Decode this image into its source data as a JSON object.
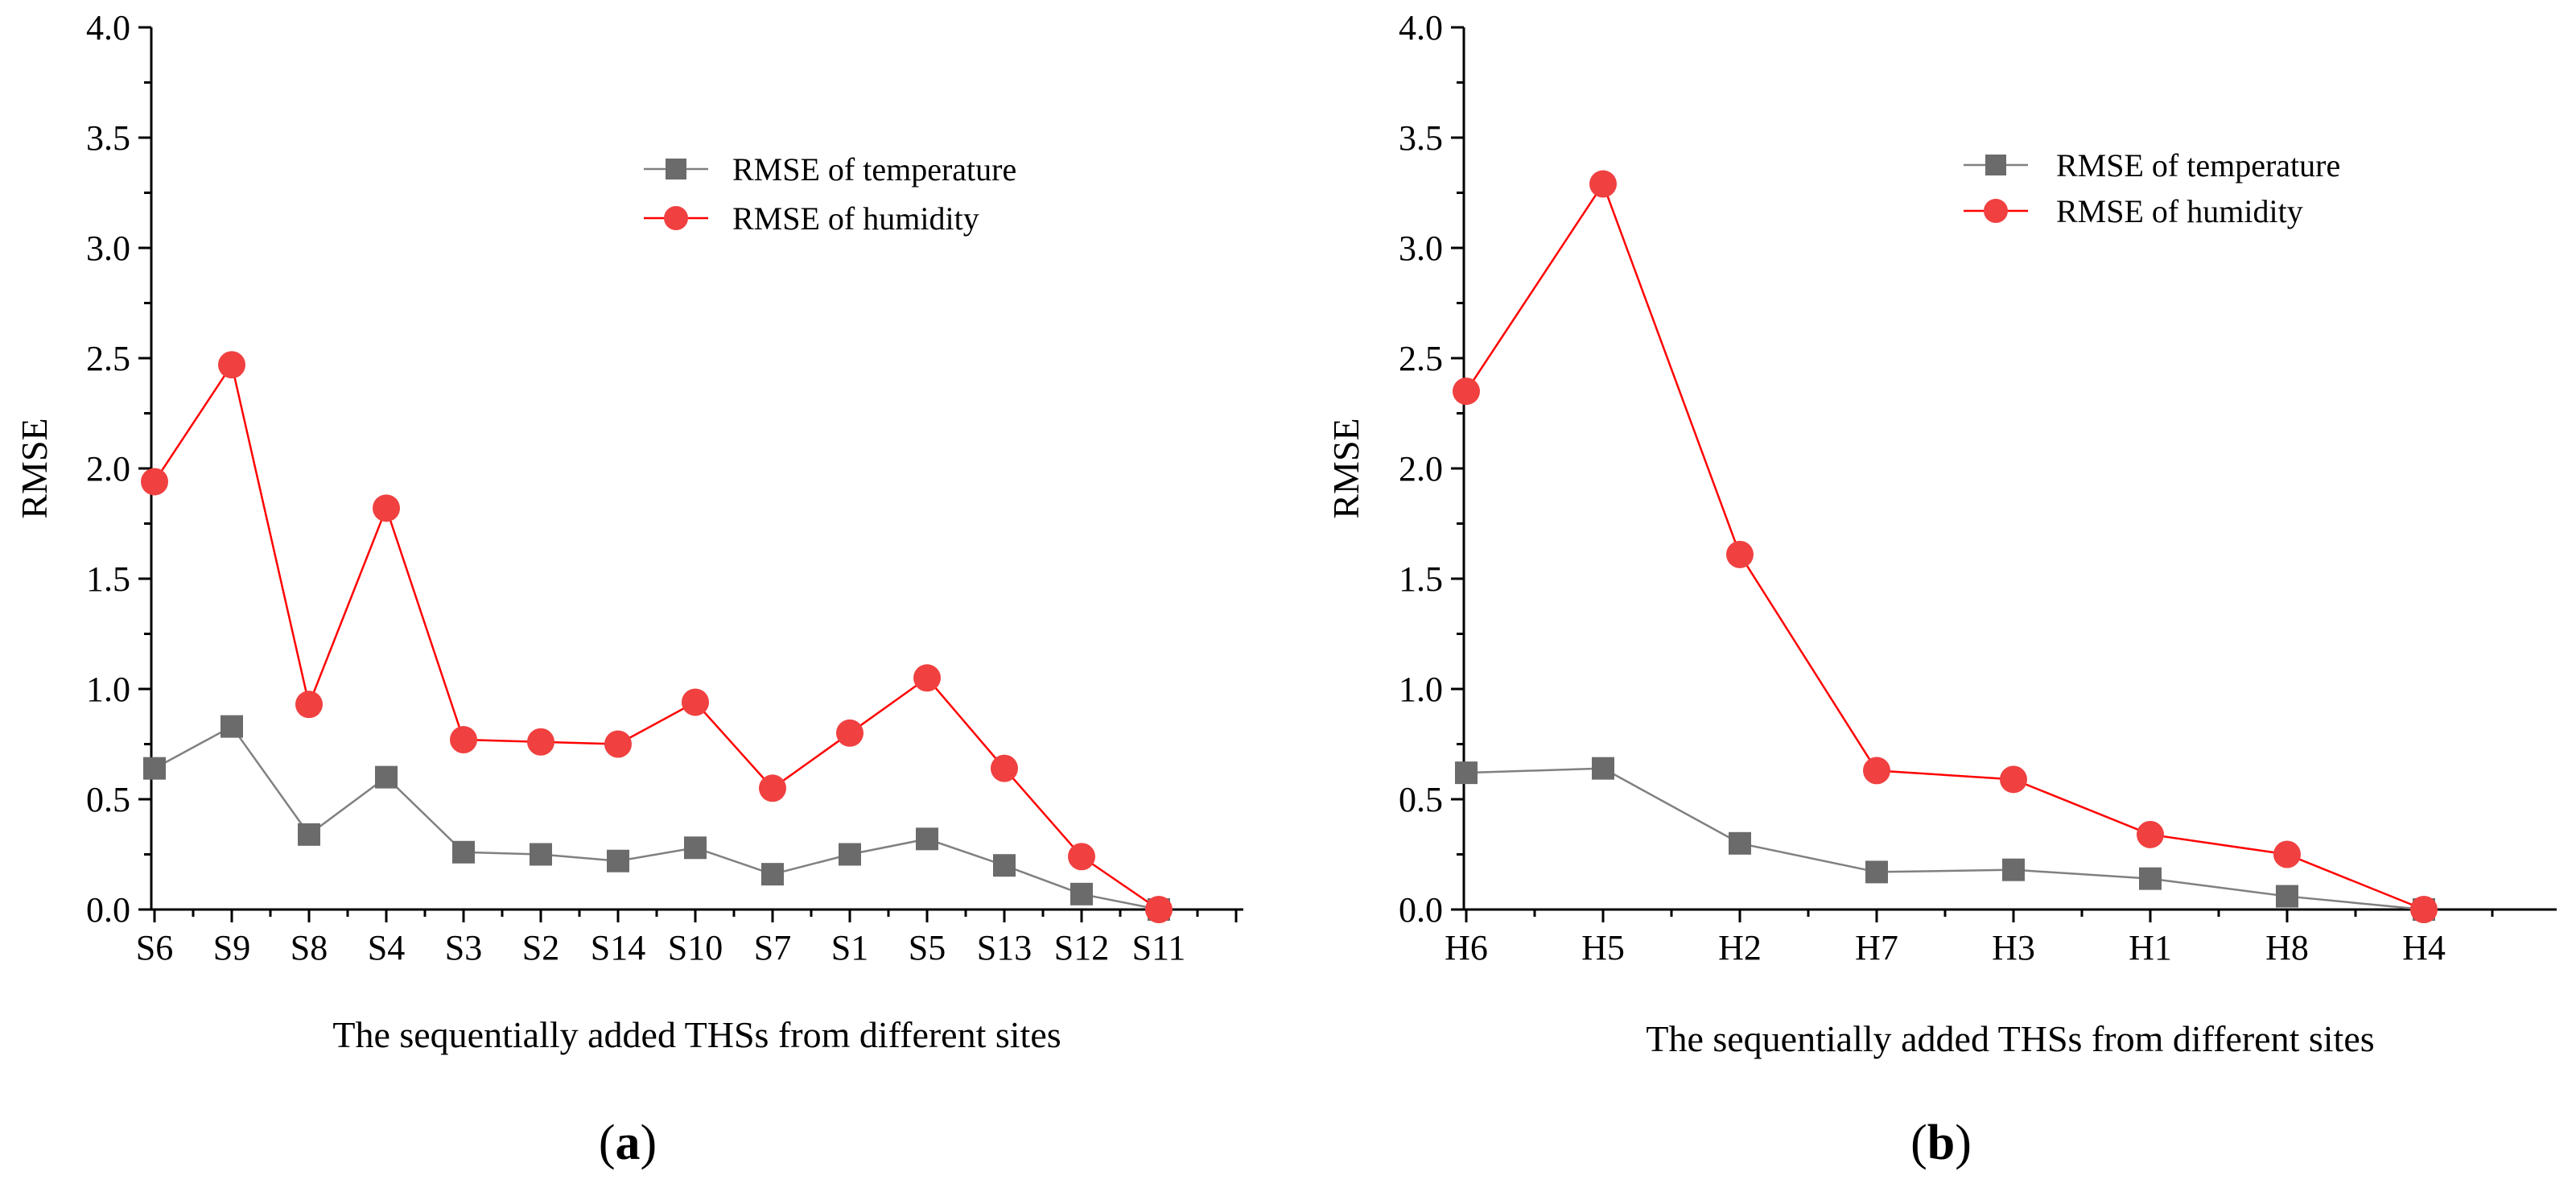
{
  "chart_data": [
    {
      "type": "line",
      "panel_label": "a",
      "xlabel": "The sequentially added THSs from different sites",
      "ylabel": "RMSE",
      "ylim": [
        0,
        4.0
      ],
      "yticks": [
        "0.0",
        "0.5",
        "1.0",
        "1.5",
        "2.0",
        "2.5",
        "3.0",
        "3.5",
        "4.0"
      ],
      "categories": [
        "S6",
        "S9",
        "S8",
        "S4",
        "S3",
        "S2",
        "S14",
        "S10",
        "S7",
        "S1",
        "S5",
        "S13",
        "S12",
        "S11"
      ],
      "legend_position": "top-right",
      "series": [
        {
          "name": "RMSE of temperature",
          "marker": "square",
          "color": "#808080",
          "marker_color": "#6b6b6b",
          "values": [
            0.64,
            0.83,
            0.34,
            0.6,
            0.26,
            0.25,
            0.22,
            0.28,
            0.16,
            0.25,
            0.32,
            0.2,
            0.07,
            0.0
          ]
        },
        {
          "name": "RMSE of humidity",
          "marker": "circle",
          "color": "#ff0000",
          "marker_color": "#f04040",
          "values": [
            1.94,
            2.47,
            0.93,
            1.82,
            0.77,
            0.76,
            0.75,
            0.94,
            0.55,
            0.8,
            1.05,
            0.64,
            0.24,
            0.0
          ]
        }
      ]
    },
    {
      "type": "line",
      "panel_label": "b",
      "xlabel": "The sequentially added THSs from different sites",
      "ylabel": "RMSE",
      "ylim": [
        0,
        4.0
      ],
      "yticks": [
        "0.0",
        "0.5",
        "1.0",
        "1.5",
        "2.0",
        "2.5",
        "3.0",
        "3.5",
        "4.0"
      ],
      "categories": [
        "H6",
        "H5",
        "H2",
        "H7",
        "H3",
        "H1",
        "H8",
        "H4"
      ],
      "legend_position": "top-right",
      "series": [
        {
          "name": "RMSE of temperature",
          "marker": "square",
          "color": "#808080",
          "marker_color": "#6b6b6b",
          "values": [
            0.62,
            0.64,
            0.3,
            0.17,
            0.18,
            0.14,
            0.06,
            0.0
          ]
        },
        {
          "name": "RMSE of humidity",
          "marker": "circle",
          "color": "#ff0000",
          "marker_color": "#f04040",
          "values": [
            2.35,
            3.29,
            1.61,
            0.63,
            0.59,
            0.34,
            0.25,
            0.0
          ]
        }
      ]
    }
  ]
}
